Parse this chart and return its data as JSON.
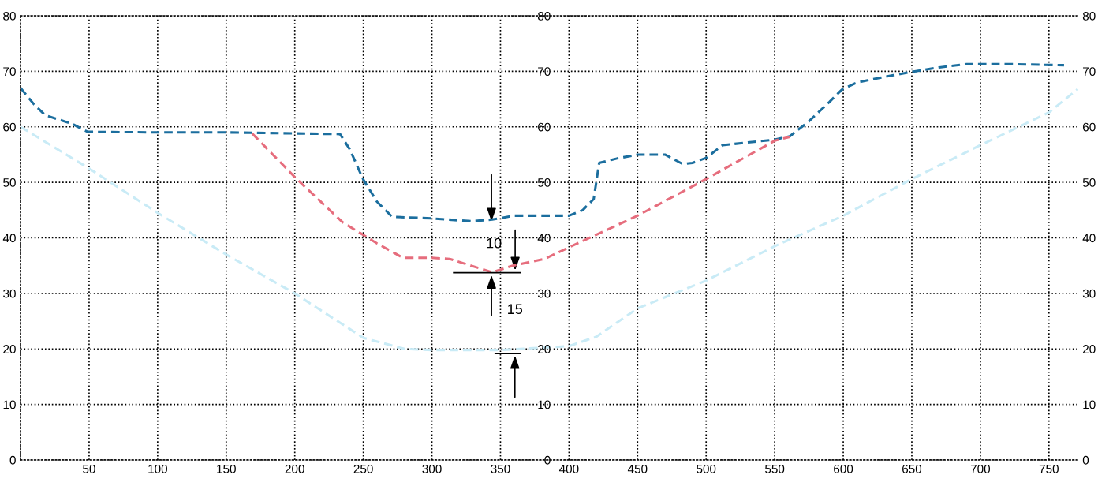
{
  "chart_data": {
    "type": "line",
    "line_style": "dashed",
    "marker": "none",
    "grid": true,
    "legend": false,
    "xlim": [
      0,
      772
    ],
    "ylim": [
      0,
      80
    ],
    "y2lim": [
      0,
      80
    ],
    "xticks": [
      50,
      100,
      150,
      200,
      250,
      300,
      350,
      400,
      450,
      500,
      550,
      600,
      650,
      700,
      750
    ],
    "yticks": [
      0,
      10,
      20,
      30,
      40,
      50,
      60,
      70,
      80
    ],
    "y2ticks": [
      0,
      10,
      20,
      30,
      40,
      50,
      60,
      70,
      80
    ],
    "y3lim": [
      0,
      80
    ],
    "y3ticks": [
      0,
      10,
      20,
      30,
      40,
      50,
      60,
      70,
      80
    ],
    "series": [
      {
        "color": "#1b6e9e",
        "x": [
          0,
          10,
          18,
          38,
          49,
          100,
          150,
          233,
          240,
          250,
          260,
          271,
          300,
          329,
          344,
          360,
          400,
          410,
          418,
          422,
          435,
          450,
          470,
          483,
          490,
          500,
          512,
          550,
          561,
          575,
          590,
          599,
          610,
          630,
          650,
          670,
          690,
          720,
          761
        ],
        "values": [
          67,
          64,
          62.1,
          60.5,
          59.1,
          59,
          59,
          58.7,
          56,
          50.5,
          46.5,
          43.8,
          43.5,
          43,
          43.3,
          44,
          44,
          45,
          47,
          53.5,
          54.3,
          55,
          55,
          53.3,
          53.5,
          54.4,
          56.7,
          57.7,
          58.3,
          61,
          64.5,
          66.7,
          68,
          69,
          69.9,
          70.7,
          71.3,
          71.3,
          71.1
        ]
      },
      {
        "color": "#e66d7d",
        "x": [
          169,
          201,
          235,
          260,
          279,
          300,
          313,
          344,
          359,
          382,
          400,
          450,
          500,
          550,
          561
        ],
        "values": [
          58.8,
          50.7,
          42.8,
          39,
          36.4,
          36.4,
          36.2,
          33.8,
          35,
          36.2,
          38.3,
          44,
          50.6,
          57.5,
          58.2
        ]
      },
      {
        "color": "#c9ebf6",
        "x": [
          0,
          50,
          100,
          150,
          200,
          250,
          280,
          300,
          350,
          400,
          420,
          450,
          500,
          550,
          600,
          650,
          700,
          750,
          771
        ],
        "values": [
          60,
          52.5,
          44.5,
          37,
          30,
          22,
          20,
          19.8,
          19.8,
          20.5,
          22.2,
          27.3,
          32.3,
          38.5,
          44,
          50.6,
          56.7,
          62.6,
          66.8
        ]
      }
    ],
    "annotations": [
      {
        "text": "10",
        "x": 359,
        "y": 35
      },
      "15"
    ]
  }
}
